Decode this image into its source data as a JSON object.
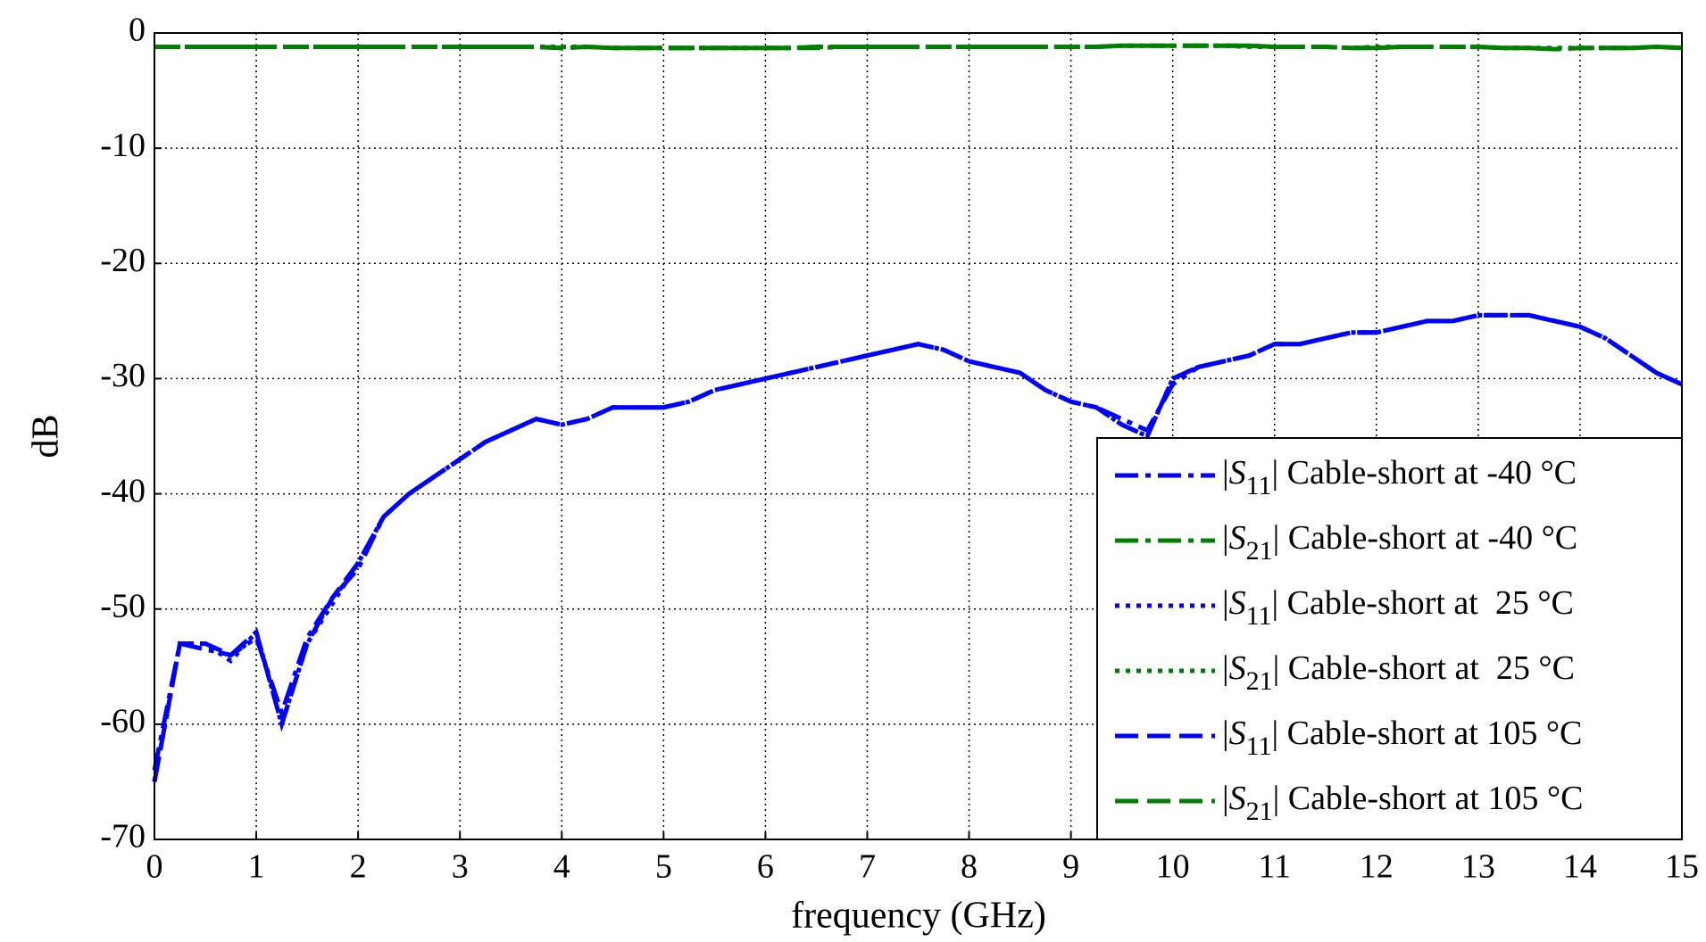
{
  "chart_data": {
    "type": "line",
    "xlabel": "frequency (GHz)",
    "ylabel": "dB",
    "xlim": [
      0,
      15
    ],
    "ylim": [
      -70,
      0
    ],
    "xticks": [
      0,
      1,
      2,
      3,
      4,
      5,
      6,
      7,
      8,
      9,
      10,
      11,
      12,
      13,
      14,
      15
    ],
    "yticks": [
      0,
      -10,
      -20,
      -30,
      -40,
      -50,
      -60,
      -70
    ],
    "grid": true,
    "legend": "lower right",
    "x": [
      0,
      0.25,
      0.5,
      0.75,
      1,
      1.25,
      1.5,
      1.75,
      2,
      2.25,
      2.5,
      2.75,
      3,
      3.25,
      3.5,
      3.75,
      4,
      4.25,
      4.5,
      4.75,
      5,
      5.25,
      5.5,
      5.75,
      6,
      6.25,
      6.5,
      6.75,
      7,
      7.25,
      7.5,
      7.75,
      8,
      8.25,
      8.5,
      8.75,
      9,
      9.25,
      9.5,
      9.75,
      10,
      10.25,
      10.5,
      10.75,
      11,
      11.25,
      11.5,
      11.75,
      12,
      12.25,
      12.5,
      12.75,
      13,
      13.25,
      13.5,
      13.75,
      14,
      14.25,
      14.5,
      14.75,
      15
    ],
    "series": [
      {
        "name": "|S11| Cable-short at -40 °C",
        "color": "#0000ff",
        "linestyle": "dashdot",
        "values": [
          -64,
          -53,
          -53.5,
          -54,
          -52.5,
          -59,
          -52.5,
          -49,
          -46.5,
          -42,
          -40,
          -38.5,
          -37,
          -35.5,
          -34.5,
          -33.5,
          -34,
          -33.5,
          -32.5,
          -32.5,
          -32.5,
          -32,
          -31,
          -30.5,
          -30,
          -29.5,
          -29,
          -28.5,
          -28,
          -27.5,
          -27,
          -27.5,
          -28.5,
          -29,
          -29.5,
          -31,
          -32,
          -32.5,
          -33.5,
          -34.5,
          -30.5,
          -29,
          -28.5,
          -28,
          -27,
          -27,
          -26.5,
          -26,
          -26,
          -25.5,
          -25,
          -25,
          -24.5,
          -24.5,
          -24.5,
          -25,
          -25.5,
          -26.5,
          -28,
          -29.5,
          -30.5
        ]
      },
      {
        "name": "|S21| Cable-short at -40 °C",
        "color": "#008000",
        "linestyle": "dashdot",
        "values": [
          -1.2,
          -1.2,
          -1.2,
          -1.2,
          -1.2,
          -1.2,
          -1.2,
          -1.2,
          -1.2,
          -1.2,
          -1.2,
          -1.2,
          -1.2,
          -1.2,
          -1.2,
          -1.2,
          -1.3,
          -1.2,
          -1.3,
          -1.3,
          -1.3,
          -1.3,
          -1.3,
          -1.3,
          -1.3,
          -1.3,
          -1.3,
          -1.2,
          -1.2,
          -1.2,
          -1.2,
          -1.2,
          -1.2,
          -1.2,
          -1.2,
          -1.2,
          -1.2,
          -1.2,
          -1.1,
          -1.1,
          -1.1,
          -1.1,
          -1.1,
          -1.1,
          -1.2,
          -1.2,
          -1.2,
          -1.3,
          -1.3,
          -1.2,
          -1.2,
          -1.2,
          -1.2,
          -1.3,
          -1.3,
          -1.4,
          -1.3,
          -1.3,
          -1.3,
          -1.2,
          -1.3
        ]
      },
      {
        "name": "|S11| Cable-short at  25 °C",
        "color": "#0000ff",
        "linestyle": "dotted",
        "values": [
          -65,
          -53,
          -53,
          -54.5,
          -52,
          -60,
          -53,
          -49.5,
          -46,
          -42,
          -40,
          -38.5,
          -37,
          -35.5,
          -34.5,
          -33.5,
          -34,
          -33.5,
          -32.5,
          -32.5,
          -32.5,
          -32,
          -31,
          -30.5,
          -30,
          -29.5,
          -29,
          -28.5,
          -28,
          -27.5,
          -27,
          -27.5,
          -28.5,
          -29,
          -29.5,
          -31,
          -32,
          -32.5,
          -34,
          -35,
          -30,
          -29,
          -28.5,
          -28,
          -27,
          -27,
          -26.5,
          -26,
          -26,
          -25.5,
          -25,
          -25,
          -24.5,
          -24.5,
          -24.5,
          -25,
          -25.5,
          -26.5,
          -28,
          -29.5,
          -30.5
        ]
      },
      {
        "name": "|S21| Cable-short at  25 °C",
        "color": "#008000",
        "linestyle": "dotted",
        "values": [
          -1.2,
          -1.2,
          -1.2,
          -1.2,
          -1.2,
          -1.2,
          -1.2,
          -1.2,
          -1.2,
          -1.2,
          -1.2,
          -1.2,
          -1.2,
          -1.2,
          -1.2,
          -1.2,
          -1.2,
          -1.2,
          -1.3,
          -1.3,
          -1.3,
          -1.3,
          -1.3,
          -1.3,
          -1.3,
          -1.3,
          -1.2,
          -1.2,
          -1.2,
          -1.2,
          -1.2,
          -1.2,
          -1.2,
          -1.2,
          -1.2,
          -1.2,
          -1.2,
          -1.2,
          -1.1,
          -1.1,
          -1.1,
          -1.1,
          -1.1,
          -1.2,
          -1.2,
          -1.2,
          -1.2,
          -1.3,
          -1.2,
          -1.2,
          -1.2,
          -1.2,
          -1.2,
          -1.3,
          -1.3,
          -1.3,
          -1.3,
          -1.3,
          -1.3,
          -1.2,
          -1.3
        ]
      },
      {
        "name": "|S11| Cable-short at 105 °C",
        "color": "#0000ff",
        "linestyle": "dashed",
        "values": [
          -65,
          -53,
          -53,
          -54,
          -52,
          -60,
          -53,
          -49,
          -46,
          -42,
          -40,
          -38.5,
          -37,
          -35.5,
          -34.5,
          -33.5,
          -34,
          -33.5,
          -32.5,
          -32.5,
          -32.5,
          -32,
          -31,
          -30.5,
          -30,
          -29.5,
          -29,
          -28.5,
          -28,
          -27.5,
          -27,
          -27.5,
          -28.5,
          -29,
          -29.5,
          -31,
          -32,
          -32.5,
          -34,
          -35,
          -30,
          -29,
          -28.5,
          -28,
          -27,
          -27,
          -26.5,
          -26,
          -26,
          -25.5,
          -25,
          -25,
          -24.5,
          -24.5,
          -24.5,
          -25,
          -25.5,
          -26.5,
          -28,
          -29.5,
          -30.5
        ]
      },
      {
        "name": "|S21| Cable-short at 105 °C",
        "color": "#008000",
        "linestyle": "dashed",
        "values": [
          -1.2,
          -1.2,
          -1.2,
          -1.2,
          -1.2,
          -1.2,
          -1.2,
          -1.2,
          -1.2,
          -1.2,
          -1.2,
          -1.2,
          -1.2,
          -1.2,
          -1.2,
          -1.2,
          -1.3,
          -1.2,
          -1.3,
          -1.3,
          -1.3,
          -1.3,
          -1.3,
          -1.3,
          -1.3,
          -1.3,
          -1.2,
          -1.2,
          -1.2,
          -1.2,
          -1.2,
          -1.2,
          -1.2,
          -1.2,
          -1.2,
          -1.2,
          -1.2,
          -1.2,
          -1.1,
          -1.1,
          -1.1,
          -1.1,
          -1.1,
          -1.1,
          -1.2,
          -1.2,
          -1.2,
          -1.3,
          -1.3,
          -1.2,
          -1.2,
          -1.2,
          -1.2,
          -1.3,
          -1.3,
          -1.4,
          -1.3,
          -1.3,
          -1.3,
          -1.2,
          -1.3
        ]
      }
    ]
  }
}
